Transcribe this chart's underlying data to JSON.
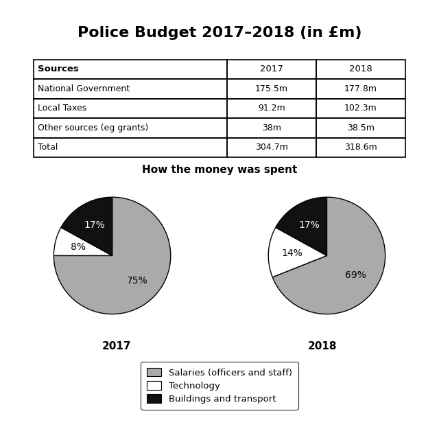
{
  "title": "Police Budget 2017–2018 (in £m)",
  "table": {
    "col_headers": [
      "Sources",
      "2017",
      "2018"
    ],
    "rows": [
      [
        "National Government",
        "175.5m",
        "177.8m"
      ],
      [
        "Local Taxes",
        "91.2m",
        "102.3m"
      ],
      [
        "Other sources (eg grants)",
        "38m",
        "38.5m"
      ],
      [
        "Total",
        "304.7m",
        "318.6m"
      ]
    ]
  },
  "pie_subtitle": "How the money was spent",
  "pie_2017": {
    "year_label": "2017",
    "values": [
      75,
      8,
      17
    ],
    "pct_labels": [
      "75%",
      "8%",
      "17%"
    ],
    "colors": [
      "#aaaaaa",
      "#ffffff",
      "#111111"
    ]
  },
  "pie_2018": {
    "year_label": "2018",
    "values": [
      69,
      14,
      17
    ],
    "pct_labels": [
      "69%",
      "14%",
      "17%"
    ],
    "colors": [
      "#aaaaaa",
      "#ffffff",
      "#111111"
    ]
  },
  "legend_items": [
    {
      "label": "Salaries (officers and staff)",
      "color": "#aaaaaa"
    },
    {
      "label": "Technology",
      "color": "#ffffff"
    },
    {
      "label": "Buildings and transport",
      "color": "#111111"
    }
  ],
  "title_fontsize": 16,
  "table_header_fontsize": 9.5,
  "table_cell_fontsize": 9,
  "pie_pct_fontsize": 10,
  "pie_year_fontsize": 11,
  "pie_subtitle_fontsize": 11,
  "legend_fontsize": 9.5,
  "background_color": "#ffffff"
}
